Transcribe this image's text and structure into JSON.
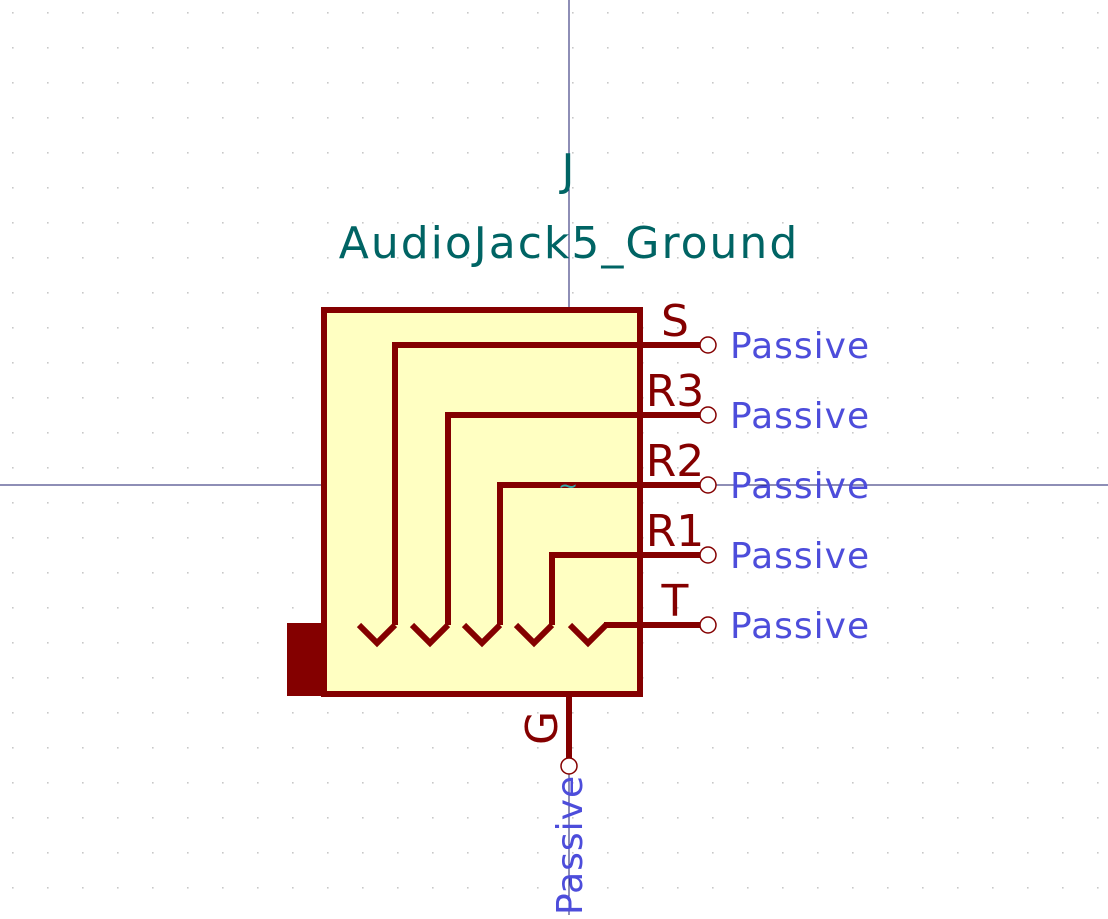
{
  "symbol": {
    "reference": "J",
    "value": "AudioJack5_Ground",
    "pins": [
      {
        "name": "S",
        "type": "Passive"
      },
      {
        "name": "R3",
        "type": "Passive"
      },
      {
        "name": "R2",
        "type": "Passive"
      },
      {
        "name": "R1",
        "type": "Passive"
      },
      {
        "name": "T",
        "type": "Passive"
      },
      {
        "name": "G",
        "type": "Passive"
      }
    ]
  },
  "colors": {
    "body_outline": "#840000",
    "body_fill": "#ffffc2",
    "field_text": "#006464",
    "pin_type_text": "#4d4ddb",
    "crosshair": "#1c1c6e",
    "grid_dot": "#c8c8c8",
    "anchor_marker": "#33aaaa"
  }
}
